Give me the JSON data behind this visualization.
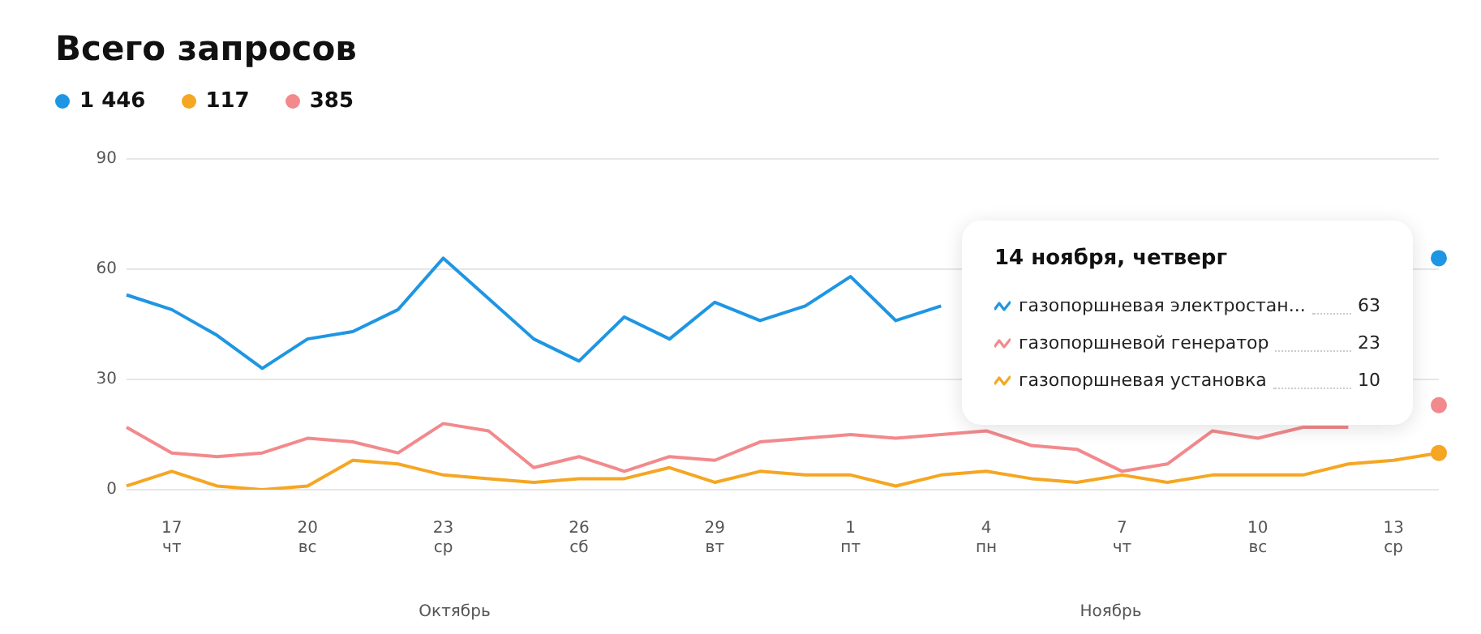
{
  "chart_data": {
    "type": "line",
    "title": "Всего запросов",
    "categories": [
      null,
      "17 чт",
      null,
      null,
      "20 вс",
      null,
      null,
      "23 ср",
      null,
      null,
      "26 сб",
      null,
      null,
      "29 вт",
      null,
      null,
      "1 пт",
      null,
      null,
      "4 пн",
      null,
      null,
      "7 чт",
      null,
      null,
      "10 вс",
      null,
      null,
      "13 ср",
      null
    ],
    "series": [
      {
        "name": "газопоршневая электростан...",
        "color": "#1e96e3",
        "values": [
          53,
          49,
          42,
          33,
          41,
          43,
          49,
          63,
          52,
          41,
          35,
          47,
          41,
          51,
          46,
          50,
          58,
          46,
          50,
          null,
          null,
          null,
          null,
          null,
          null,
          null,
          null,
          null,
          null,
          63
        ]
      },
      {
        "name": "газопоршневая установка",
        "color": "#f5a623",
        "values": [
          1,
          5,
          1,
          0,
          1,
          8,
          7,
          4,
          3,
          2,
          3,
          3,
          6,
          2,
          5,
          4,
          4,
          1,
          4,
          5,
          3,
          2,
          4,
          2,
          4,
          4,
          4,
          7,
          8,
          10
        ]
      },
      {
        "name": "газопоршневой генератор",
        "color": "#f2898c",
        "values": [
          17,
          10,
          9,
          10,
          14,
          13,
          10,
          18,
          16,
          6,
          9,
          5,
          9,
          8,
          13,
          14,
          15,
          14,
          15,
          16,
          12,
          11,
          5,
          7,
          16,
          14,
          17,
          17,
          null,
          23
        ]
      }
    ],
    "ylim": [
      0,
      90
    ],
    "yticks": [
      0,
      30,
      60,
      90
    ],
    "grid": "y",
    "legend": "right",
    "annotations": [
      "1 446",
      "117",
      "385",
      "14 ноября, четверг",
      "63",
      "10",
      "23",
      "Октябрь",
      "Ноябрь"
    ]
  }
}
